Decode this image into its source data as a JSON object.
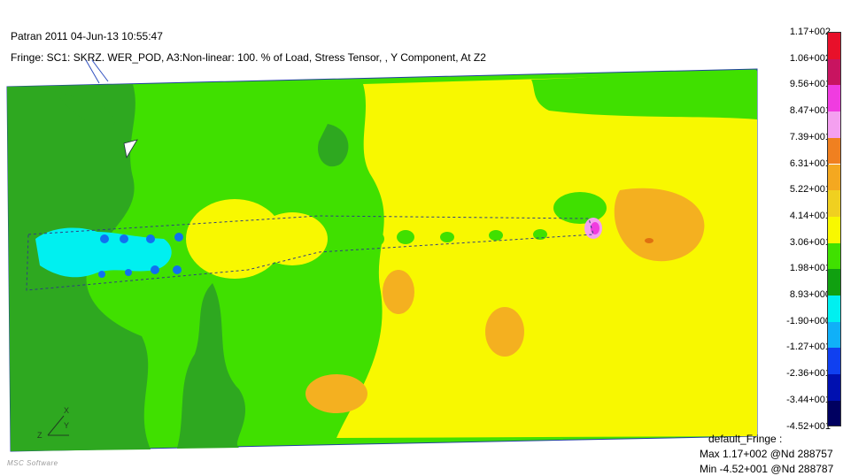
{
  "header": {
    "title": "Patran 2011 04-Jun-13 10:55:47",
    "fringe_description": "Fringe: SC1: SKRZ. WER_POD, A3:Non-linear: 100. % of Load, Stress Tensor, , Y Component, At Z2"
  },
  "legend": {
    "labels": [
      "1.17+002",
      "1.06+002",
      "9.56+001",
      "8.47+001",
      "7.39+001",
      "6.31+001",
      "5.22+001",
      "4.14+001",
      "3.06+001",
      "1.98+001",
      "8.93+000",
      "-1.90+000",
      "-1.27+001",
      "-2.36+001",
      "-3.44+001",
      "-4.52+001"
    ],
    "colors": [
      "#e8102a",
      "#c81460",
      "#f03ce0",
      "#f4a0f0",
      "#f08020",
      "#f4a820",
      "#f0d020",
      "#f8f800",
      "#40e000",
      "#10a010",
      "#00f0f0",
      "#10b0f8",
      "#1040f0",
      "#0010b0",
      "#000060",
      "#101010"
    ]
  },
  "info": {
    "title": "default_Fringe :",
    "max_text": "Max 1.17+002 @Nd 288757",
    "min_text": "Min -4.52+001 @Nd 288787"
  },
  "axes": {
    "x_label": "X",
    "y_label": "Y",
    "z_label": "Z"
  },
  "watermark_text": "MSC Software",
  "colors": {
    "green": "#40e000",
    "dark_green": "#2ea820",
    "yellow": "#f8f800",
    "orange": "#f4b020",
    "cyan": "#00f0f0",
    "blue": "#1070f0"
  }
}
